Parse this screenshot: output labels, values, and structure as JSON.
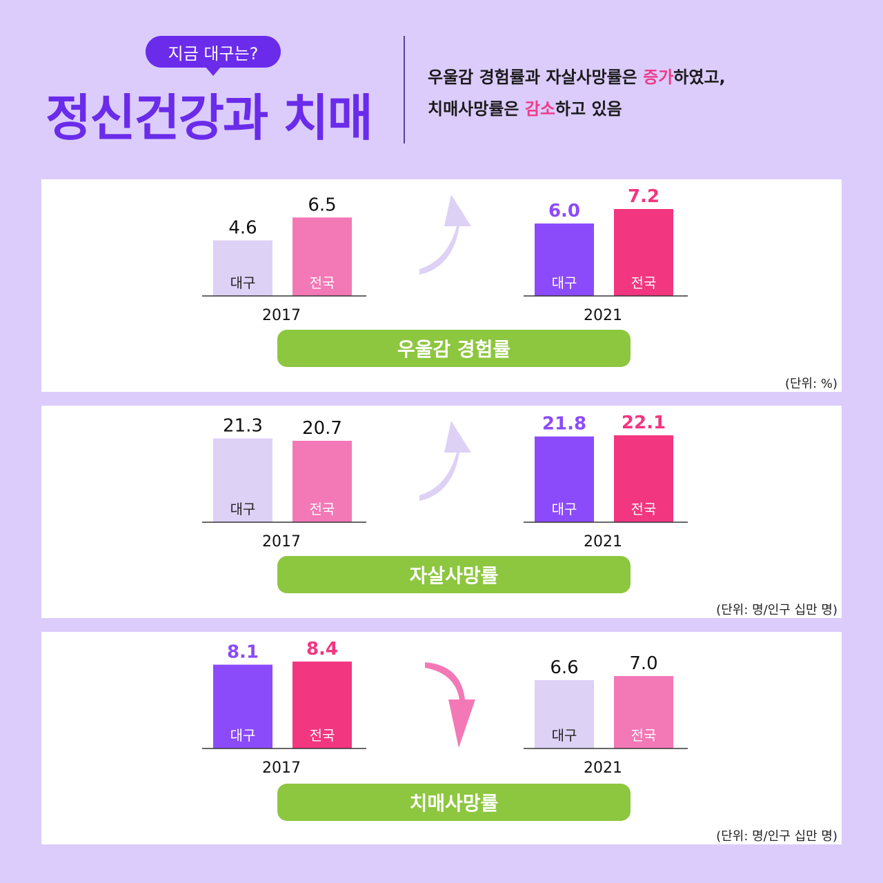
{
  "header": {
    "badge": "지금 대구는?",
    "title": "정신건강과 치매",
    "summary_line1": {
      "a": "우울감 경험률과 자살사망률은 ",
      "b": "증가",
      "c": "하였고,"
    },
    "summary_line2": {
      "a": "치매사망률은 ",
      "b": "감소",
      "c": "하고 있음"
    }
  },
  "colors": {
    "bg": "#dcccfb",
    "accent": "#6a2bea",
    "highlight": "#ef3a8a",
    "pill": "#8dc63f"
  },
  "chart_data": [
    {
      "type": "bar",
      "title": "우울감 경험률",
      "unit": "(단위: %)",
      "categories": [
        "대구",
        "전국"
      ],
      "groups": [
        {
          "year": "2017",
          "values": [
            4.6,
            6.5
          ],
          "labels": [
            "4.6",
            "6.5"
          ]
        },
        {
          "year": "2021",
          "values": [
            6.0,
            7.2
          ],
          "labels": [
            "6.0",
            "7.2"
          ]
        }
      ],
      "trend": "up",
      "highlighted_year": "2021"
    },
    {
      "type": "bar",
      "title": "자살사망률",
      "unit": "(단위: 명/인구 십만 명)",
      "categories": [
        "대구",
        "전국"
      ],
      "groups": [
        {
          "year": "2017",
          "values": [
            21.3,
            20.7
          ],
          "labels": [
            "21.3",
            "20.7"
          ]
        },
        {
          "year": "2021",
          "values": [
            21.8,
            22.1
          ],
          "labels": [
            "21.8",
            "22.1"
          ]
        }
      ],
      "trend": "up",
      "highlighted_year": "2021"
    },
    {
      "type": "bar",
      "title": "치매사망률",
      "unit": "(단위: 명/인구 십만 명)",
      "categories": [
        "대구",
        "전국"
      ],
      "groups": [
        {
          "year": "2017",
          "values": [
            8.1,
            8.4
          ],
          "labels": [
            "8.1",
            "8.4"
          ]
        },
        {
          "year": "2021",
          "values": [
            6.6,
            7.0
          ],
          "labels": [
            "6.6",
            "7.0"
          ]
        }
      ],
      "trend": "down",
      "highlighted_year": "2017"
    }
  ]
}
